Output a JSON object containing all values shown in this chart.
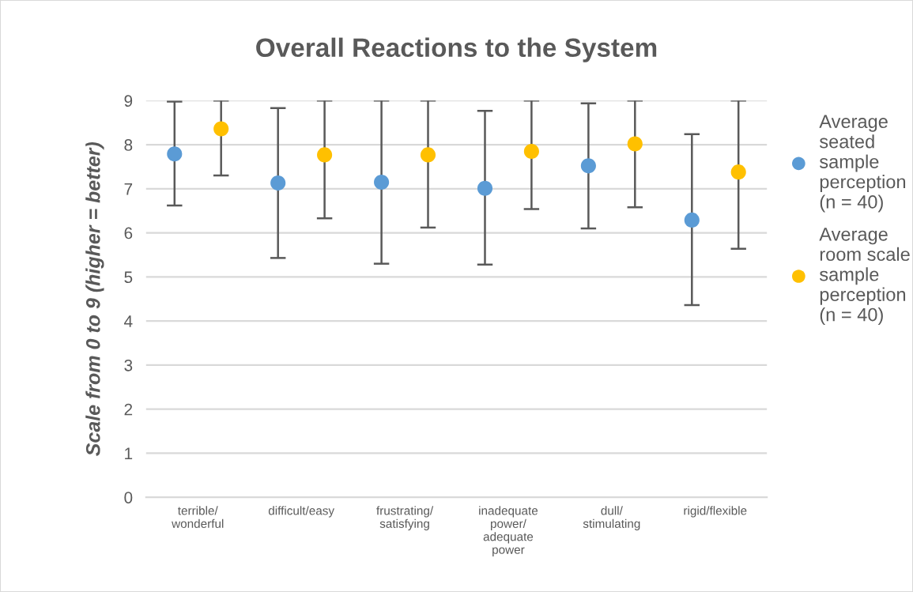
{
  "chart_data": {
    "type": "scatter",
    "title": "Overall Reactions to the System",
    "ylabel": "Scale from 0 to 9 (higher = better)",
    "categories": [
      "terrible/\nwonderful",
      "difficult/easy",
      "frustrating/\nsatisfying",
      "inadequate\npower/\nadequate\npower",
      "dull/\nstimulating",
      "rigid/flexible"
    ],
    "series": [
      {
        "name": "Average\nseated\nsample\nperception\n(n = 40)",
        "color": "#5b9bd5",
        "values": [
          7.79,
          7.13,
          7.15,
          7.01,
          7.52,
          6.29
        ],
        "errors": [
          [
            6.62,
            8.98
          ],
          [
            5.43,
            8.83
          ],
          [
            5.3,
            9.0
          ],
          [
            5.28,
            8.77
          ],
          [
            6.1,
            8.94
          ],
          [
            4.36,
            8.24
          ]
        ]
      },
      {
        "name": "Average\nroom scale\nsample\nperception\n(n = 40)",
        "color": "#ffc000",
        "values": [
          8.36,
          7.77,
          7.77,
          7.85,
          8.02,
          7.38
        ],
        "errors": [
          [
            7.3,
            9.0
          ],
          [
            6.33,
            9.0
          ],
          [
            6.12,
            9.0
          ],
          [
            6.54,
            9.0
          ],
          [
            6.58,
            9.0
          ],
          [
            5.64,
            9.0
          ]
        ]
      }
    ],
    "ylim": [
      0,
      9
    ],
    "yticks": [
      0,
      1,
      2,
      3,
      4,
      5,
      6,
      7,
      8,
      9
    ],
    "grid": "y",
    "legend": "right",
    "marker": "circle"
  }
}
